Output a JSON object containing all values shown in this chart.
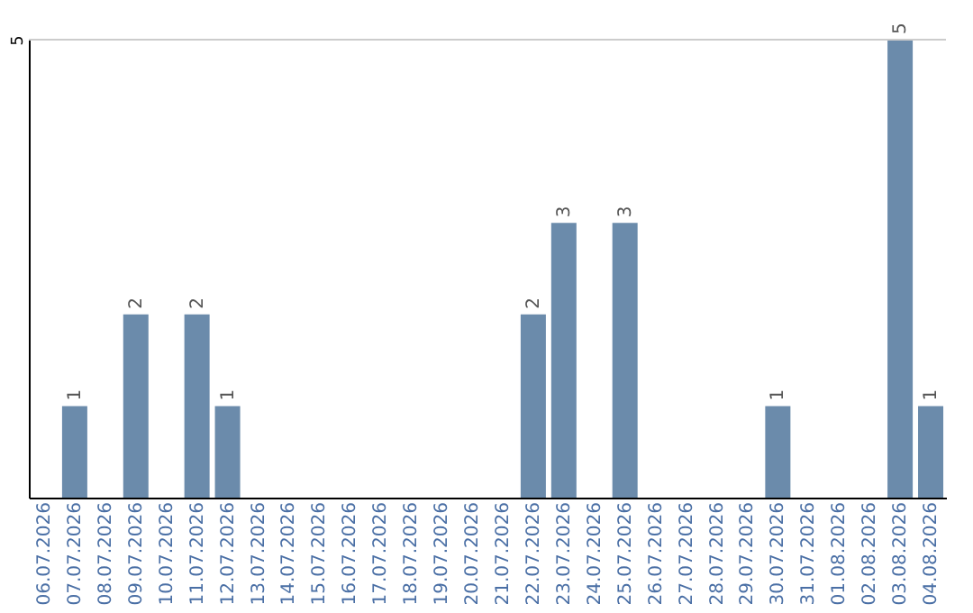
{
  "chart_data": {
    "type": "bar",
    "categories": [
      "06.07.2026",
      "07.07.2026",
      "08.07.2026",
      "09.07.2026",
      "10.07.2026",
      "11.07.2026",
      "12.07.2026",
      "13.07.2026",
      "14.07.2026",
      "15.07.2026",
      "16.07.2026",
      "17.07.2026",
      "18.07.2026",
      "19.07.2026",
      "20.07.2026",
      "21.07.2026",
      "22.07.2026",
      "23.07.2026",
      "24.07.2026",
      "25.07.2026",
      "26.07.2026",
      "27.07.2026",
      "28.07.2026",
      "29.07.2026",
      "30.07.2026",
      "31.07.2026",
      "01.08.2026",
      "02.08.2026",
      "03.08.2026",
      "04.08.2026"
    ],
    "values": [
      0,
      1,
      0,
      2,
      0,
      2,
      1,
      0,
      0,
      0,
      0,
      0,
      0,
      0,
      0,
      0,
      2,
      3,
      0,
      3,
      0,
      0,
      0,
      0,
      1,
      0,
      0,
      0,
      5,
      1
    ],
    "color": "#6b8bab",
    "value_labels": [
      null,
      "1",
      null,
      "2",
      null,
      "2",
      "1",
      null,
      null,
      null,
      null,
      null,
      null,
      null,
      null,
      null,
      "2",
      "3",
      null,
      "3",
      null,
      null,
      null,
      null,
      "1",
      null,
      null,
      null,
      "5",
      "1"
    ],
    "ylim": [
      0,
      5
    ],
    "yticks": [
      5
    ],
    "ref_lines": [
      {
        "axis": "y",
        "value": 5,
        "color": "#cccccc"
      }
    ]
  }
}
